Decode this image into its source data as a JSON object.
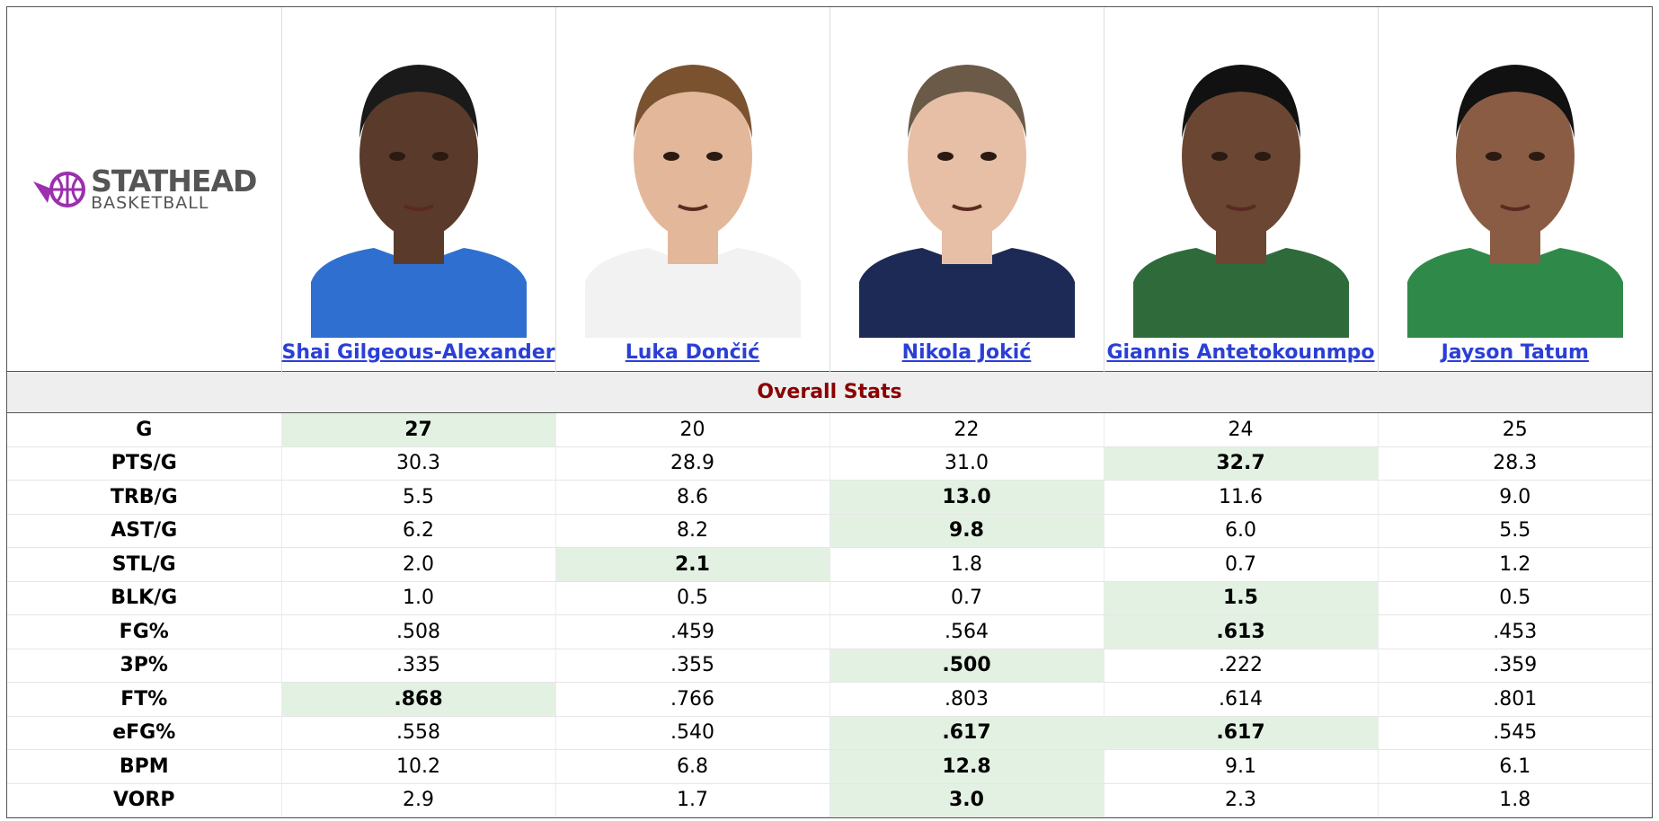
{
  "logo": {
    "title": "STATHEAD",
    "subtitle": "BASKETBALL"
  },
  "players": [
    "Shai Gilgeous-Alexander",
    "Luka Dončić",
    "Nikola Jokić",
    "Giannis Antetokounmpo",
    "Jayson Tatum"
  ],
  "section": "Overall Stats",
  "rows": [
    {
      "stat": "G",
      "values": [
        "27",
        "20",
        "22",
        "24",
        "25"
      ],
      "highlight": [
        0
      ]
    },
    {
      "stat": "PTS/G",
      "values": [
        "30.3",
        "28.9",
        "31.0",
        "32.7",
        "28.3"
      ],
      "highlight": [
        3
      ]
    },
    {
      "stat": "TRB/G",
      "values": [
        "5.5",
        "8.6",
        "13.0",
        "11.6",
        "9.0"
      ],
      "highlight": [
        2
      ]
    },
    {
      "stat": "AST/G",
      "values": [
        "6.2",
        "8.2",
        "9.8",
        "6.0",
        "5.5"
      ],
      "highlight": [
        2
      ]
    },
    {
      "stat": "STL/G",
      "values": [
        "2.0",
        "2.1",
        "1.8",
        "0.7",
        "1.2"
      ],
      "highlight": [
        1
      ]
    },
    {
      "stat": "BLK/G",
      "values": [
        "1.0",
        "0.5",
        "0.7",
        "1.5",
        "0.5"
      ],
      "highlight": [
        3
      ]
    },
    {
      "stat": "FG%",
      "values": [
        ".508",
        ".459",
        ".564",
        ".613",
        ".453"
      ],
      "highlight": [
        3
      ]
    },
    {
      "stat": "3P%",
      "values": [
        ".335",
        ".355",
        ".500",
        ".222",
        ".359"
      ],
      "highlight": [
        2
      ]
    },
    {
      "stat": "FT%",
      "values": [
        ".868",
        ".766",
        ".803",
        ".614",
        ".801"
      ],
      "highlight": [
        0
      ]
    },
    {
      "stat": "eFG%",
      "values": [
        ".558",
        ".540",
        ".617",
        ".617",
        ".545"
      ],
      "highlight": [
        2,
        3
      ]
    },
    {
      "stat": "BPM",
      "values": [
        "10.2",
        "6.8",
        "12.8",
        "9.1",
        "6.1"
      ],
      "highlight": [
        2
      ]
    },
    {
      "stat": "VORP",
      "values": [
        "2.9",
        "1.7",
        "3.0",
        "2.3",
        "1.8"
      ],
      "highlight": [
        2
      ]
    }
  ]
}
